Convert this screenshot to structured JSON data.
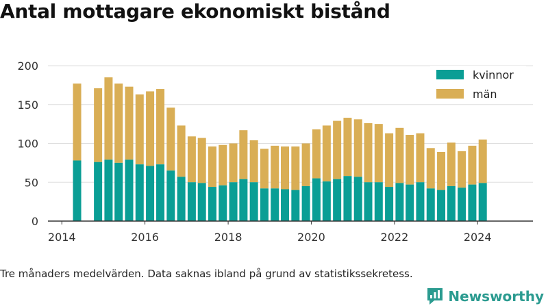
{
  "title": "Antal mottagare ekonomiskt bistånd",
  "caption": "Tre månaders medelvärden. Data saknas ibland på grund av statistikssekretess.",
  "brand": {
    "name": "Newsworthy",
    "logo_icon": "bar-chart-speech-icon"
  },
  "colors": {
    "kvinnor": "#0a9e95",
    "man": "#d9ae55",
    "grid": "#dddddd",
    "axis": "#333333",
    "brand": "#2b9b90"
  },
  "chart_data": {
    "type": "bar",
    "stacked": true,
    "x_ticks": [
      "2014",
      "2016",
      "2018",
      "2020",
      "2022",
      "2024"
    ],
    "y_ticks": [
      "0",
      "50",
      "100",
      "150",
      "200"
    ],
    "ylim": [
      0,
      200
    ],
    "xlim": [
      "2013-09-01",
      "2025-05-01"
    ],
    "legend_position": "top-right",
    "grid": "horizontal",
    "series": [
      {
        "name": "kvinnor",
        "color": "#0a9e95"
      },
      {
        "name": "män",
        "color": "#d9ae55"
      }
    ],
    "points": [
      {
        "date": "2014-05-15",
        "kvinnor": 78,
        "man": 99
      },
      {
        "date": "2014-11-15",
        "kvinnor": 76,
        "man": 95
      },
      {
        "date": "2015-02-15",
        "kvinnor": 79,
        "man": 106
      },
      {
        "date": "2015-05-15",
        "kvinnor": 75,
        "man": 102
      },
      {
        "date": "2015-08-15",
        "kvinnor": 79,
        "man": 94
      },
      {
        "date": "2015-11-15",
        "kvinnor": 73,
        "man": 90
      },
      {
        "date": "2016-02-15",
        "kvinnor": 71,
        "man": 96
      },
      {
        "date": "2016-05-15",
        "kvinnor": 73,
        "man": 97
      },
      {
        "date": "2016-08-15",
        "kvinnor": 65,
        "man": 81
      },
      {
        "date": "2016-11-15",
        "kvinnor": 57,
        "man": 66
      },
      {
        "date": "2017-02-15",
        "kvinnor": 50,
        "man": 59
      },
      {
        "date": "2017-05-15",
        "kvinnor": 49,
        "man": 58
      },
      {
        "date": "2017-08-15",
        "kvinnor": 44,
        "man": 52
      },
      {
        "date": "2017-11-15",
        "kvinnor": 46,
        "man": 52
      },
      {
        "date": "2018-02-15",
        "kvinnor": 50,
        "man": 50
      },
      {
        "date": "2018-05-15",
        "kvinnor": 54,
        "man": 63
      },
      {
        "date": "2018-08-15",
        "kvinnor": 50,
        "man": 54
      },
      {
        "date": "2018-11-15",
        "kvinnor": 42,
        "man": 51
      },
      {
        "date": "2019-02-15",
        "kvinnor": 42,
        "man": 55
      },
      {
        "date": "2019-05-15",
        "kvinnor": 41,
        "man": 55
      },
      {
        "date": "2019-08-15",
        "kvinnor": 40,
        "man": 56
      },
      {
        "date": "2019-11-15",
        "kvinnor": 45,
        "man": 55
      },
      {
        "date": "2020-02-15",
        "kvinnor": 55,
        "man": 63
      },
      {
        "date": "2020-05-15",
        "kvinnor": 51,
        "man": 72
      },
      {
        "date": "2020-08-15",
        "kvinnor": 54,
        "man": 75
      },
      {
        "date": "2020-11-15",
        "kvinnor": 58,
        "man": 75
      },
      {
        "date": "2021-02-15",
        "kvinnor": 57,
        "man": 74
      },
      {
        "date": "2021-05-15",
        "kvinnor": 50,
        "man": 76
      },
      {
        "date": "2021-08-15",
        "kvinnor": 50,
        "man": 75
      },
      {
        "date": "2021-11-15",
        "kvinnor": 44,
        "man": 69
      },
      {
        "date": "2022-02-15",
        "kvinnor": 49,
        "man": 71
      },
      {
        "date": "2022-05-15",
        "kvinnor": 47,
        "man": 64
      },
      {
        "date": "2022-08-15",
        "kvinnor": 50,
        "man": 63
      },
      {
        "date": "2022-11-15",
        "kvinnor": 42,
        "man": 52
      },
      {
        "date": "2023-02-15",
        "kvinnor": 40,
        "man": 49
      },
      {
        "date": "2023-05-15",
        "kvinnor": 45,
        "man": 56
      },
      {
        "date": "2023-08-15",
        "kvinnor": 43,
        "man": 47
      },
      {
        "date": "2023-11-15",
        "kvinnor": 47,
        "man": 50
      },
      {
        "date": "2024-02-15",
        "kvinnor": 49,
        "man": 56
      }
    ]
  }
}
